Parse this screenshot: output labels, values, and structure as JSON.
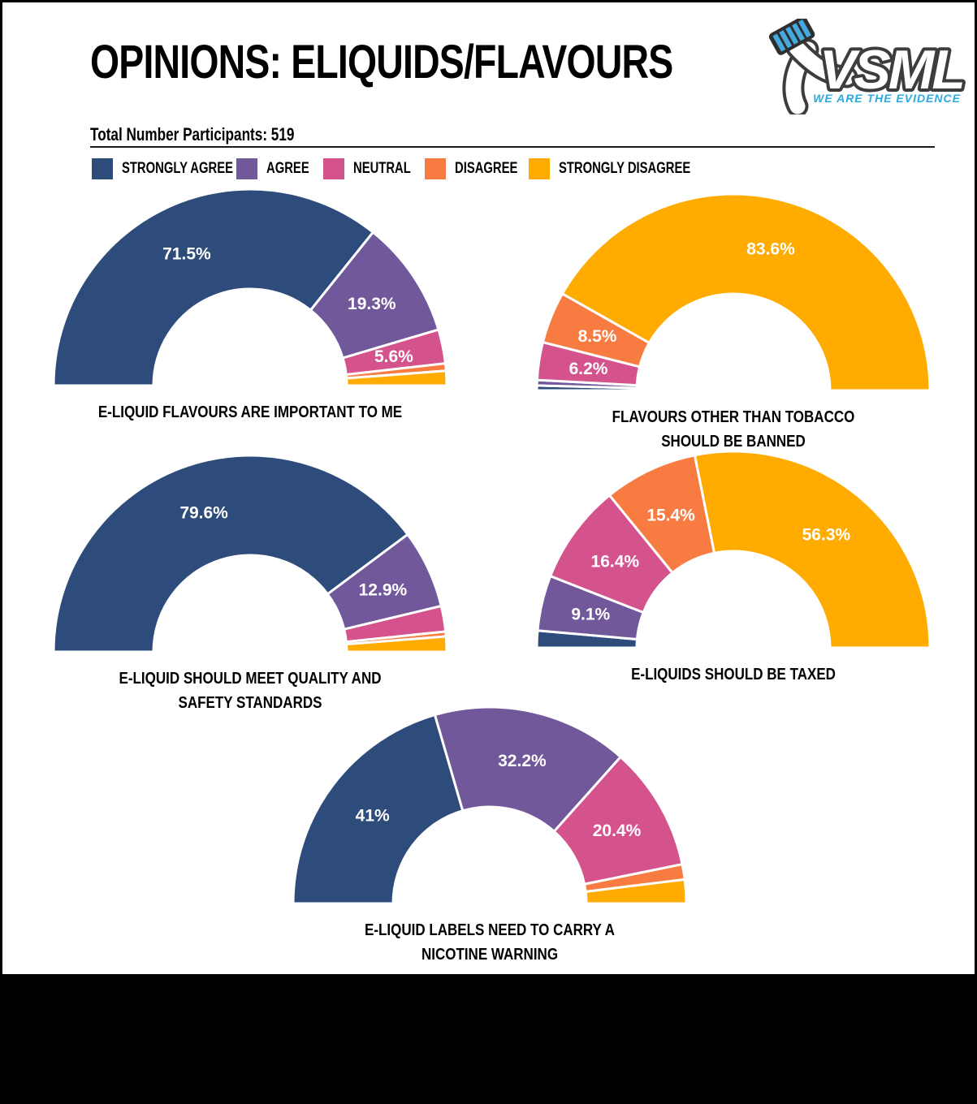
{
  "page": {
    "title": "OPINIONS: ELIQUIDS/FLAVOURS",
    "participants": "Total Number Participants: 519"
  },
  "logo": {
    "brand": "VSML",
    "tagline": "WE ARE THE EVIDENCE",
    "brand_fill": "#FFFFFF",
    "brand_outline": "#3D3D3D",
    "tagline_color": "#29ABE2",
    "ribbon_stripe_color": "#45AADF"
  },
  "legend": {
    "items": [
      {
        "label": "STRONGLY AGREE",
        "color": "#2E4C7B"
      },
      {
        "label": "AGREE",
        "color": "#71589B"
      },
      {
        "label": "NEUTRAL",
        "color": "#D5538D"
      },
      {
        "label": "DISAGREE",
        "color": "#F87B41"
      },
      {
        "label": "STRONGLY DISAGREE",
        "color": "#FFAB00"
      }
    ]
  },
  "chart_data": [
    {
      "type": "semi_donut",
      "title": "E-LIQUID FLAVOURS ARE IMPORTANT TO ME",
      "caption": "E-LIQUID FLAVOURS ARE IMPORTANT TO ME",
      "segments": [
        {
          "series": "STRONGLY AGREE",
          "value": 71.5,
          "label": "71.5%"
        },
        {
          "series": "AGREE",
          "value": 19.3,
          "label": "19.3%"
        },
        {
          "series": "NEUTRAL",
          "value": 5.6,
          "label": "5.6%"
        },
        {
          "series": "DISAGREE",
          "value": 1.2,
          "label": ""
        },
        {
          "series": "STRONGLY DISAGREE",
          "value": 2.4,
          "label": ""
        }
      ]
    },
    {
      "type": "semi_donut",
      "title": "FLAVOURS OTHER THAN TOBACCO SHOULD BE BANNED",
      "caption": "FLAVOURS OTHER THAN TOBACCO\nSHOULD BE BANNED",
      "segments": [
        {
          "series": "STRONGLY AGREE",
          "value": 0.8,
          "label": ""
        },
        {
          "series": "AGREE",
          "value": 0.9,
          "label": ""
        },
        {
          "series": "NEUTRAL",
          "value": 6.2,
          "label": "6.2%"
        },
        {
          "series": "DISAGREE",
          "value": 8.5,
          "label": "8.5%"
        },
        {
          "series": "STRONGLY DISAGREE",
          "value": 83.6,
          "label": "83.6%"
        }
      ]
    },
    {
      "type": "semi_donut",
      "title": "E-LIQUID SHOULD MEET QUALITY AND SAFETY STANDARDS",
      "caption": "E-LIQUID SHOULD MEET QUALITY AND\nSAFETY STANDARDS",
      "segments": [
        {
          "series": "STRONGLY AGREE",
          "value": 79.6,
          "label": "79.6%"
        },
        {
          "series": "AGREE",
          "value": 12.9,
          "label": "12.9%"
        },
        {
          "series": "NEUTRAL",
          "value": 4.2,
          "label": ""
        },
        {
          "series": "DISAGREE",
          "value": 0.8,
          "label": ""
        },
        {
          "series": "STRONGLY DISAGREE",
          "value": 2.5,
          "label": ""
        }
      ]
    },
    {
      "type": "semi_donut",
      "title": "E-LIQUIDS SHOULD BE TAXED",
      "caption": "E-LIQUIDS SHOULD BE TAXED",
      "segments": [
        {
          "series": "STRONGLY AGREE",
          "value": 2.8,
          "label": ""
        },
        {
          "series": "AGREE",
          "value": 9.1,
          "label": "9.1%"
        },
        {
          "series": "NEUTRAL",
          "value": 16.4,
          "label": "16.4%"
        },
        {
          "series": "DISAGREE",
          "value": 15.4,
          "label": "15.4%"
        },
        {
          "series": "STRONGLY DISAGREE",
          "value": 56.3,
          "label": "56.3%"
        }
      ]
    },
    {
      "type": "semi_donut",
      "title": "E-LIQUID LABELS NEED TO CARRY A NICOTINE WARNING",
      "caption": "E-LIQUID LABELS NEED TO CARRY A\nNICOTINE WARNING",
      "segments": [
        {
          "series": "STRONGLY AGREE",
          "value": 41,
          "label": "41%"
        },
        {
          "series": "AGREE",
          "value": 32.2,
          "label": "32.2%"
        },
        {
          "series": "NEUTRAL",
          "value": 20.4,
          "label": "20.4%"
        },
        {
          "series": "DISAGREE",
          "value": 2.5,
          "label": ""
        },
        {
          "series": "STRONGLY DISAGREE",
          "value": 3.9,
          "label": ""
        }
      ]
    }
  ]
}
